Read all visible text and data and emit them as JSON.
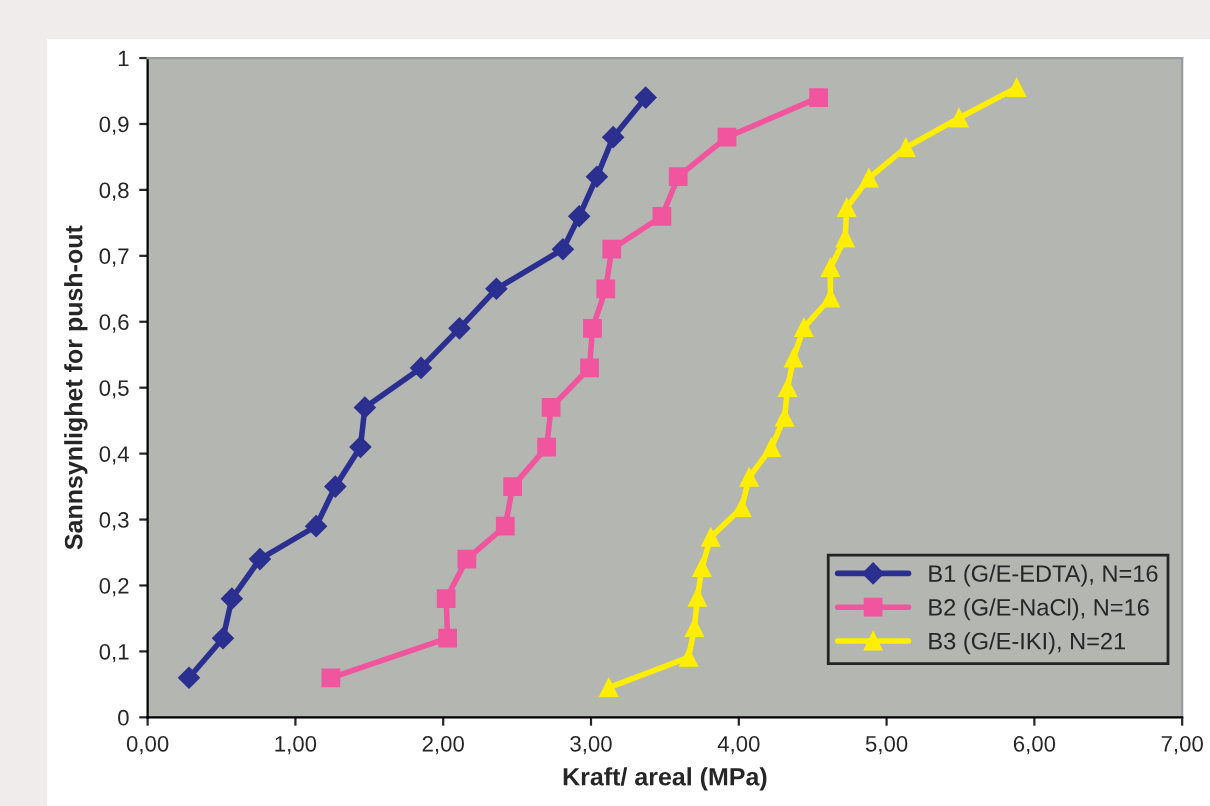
{
  "chart_data": {
    "type": "line",
    "xlabel": "Kraft/ areal (MPa)",
    "ylabel": "Sannsynlighet for push-out",
    "xlim": [
      0,
      7
    ],
    "ylim": [
      0,
      1
    ],
    "xticks": [
      {
        "value": 0,
        "label": "0,00"
      },
      {
        "value": 1,
        "label": "1,00"
      },
      {
        "value": 2,
        "label": "2,00"
      },
      {
        "value": 3,
        "label": "3,00"
      },
      {
        "value": 4,
        "label": "4,00"
      },
      {
        "value": 5,
        "label": "5,00"
      },
      {
        "value": 6,
        "label": "6,00"
      },
      {
        "value": 7,
        "label": "7,00"
      }
    ],
    "yticks": [
      0,
      {
        "value": 0.1,
        "label": "0,1"
      },
      {
        "value": 0.2,
        "label": "0,2"
      },
      {
        "value": 0.3,
        "label": "0,3"
      },
      {
        "value": 0.4,
        "label": "0,4"
      },
      {
        "value": 0.5,
        "label": "0,5"
      },
      {
        "value": 0.6,
        "label": "0,6"
      },
      {
        "value": 0.7,
        "label": "0,7"
      },
      {
        "value": 0.8,
        "label": "0,8"
      },
      {
        "value": 0.9,
        "label": "0,9"
      },
      1
    ],
    "grid": false,
    "legend": "bottom right",
    "line_style": "solid",
    "series": [
      {
        "name": "B1 (G/E-EDTA), N=16",
        "color": "#2b2f8f",
        "marker": "diamond",
        "x": [
          0.28,
          0.51,
          0.57,
          0.76,
          1.14,
          1.27,
          1.44,
          1.47,
          1.85,
          2.11,
          2.36,
          2.81,
          2.92,
          3.04,
          3.15,
          3.37
        ],
        "values": [
          0.06,
          0.12,
          0.18,
          0.24,
          0.29,
          0.35,
          0.41,
          0.47,
          0.53,
          0.59,
          0.65,
          0.71,
          0.76,
          0.82,
          0.88,
          0.94
        ]
      },
      {
        "name": "B2 (G/E-NaCl), N=16",
        "color": "#f0559e",
        "marker": "square",
        "x": [
          1.24,
          2.03,
          2.02,
          2.16,
          2.42,
          2.47,
          2.7,
          2.73,
          2.99,
          3.01,
          3.1,
          3.14,
          3.48,
          3.59,
          3.92,
          4.54
        ],
        "values": [
          0.06,
          0.12,
          0.18,
          0.24,
          0.29,
          0.35,
          0.41,
          0.47,
          0.53,
          0.59,
          0.65,
          0.71,
          0.76,
          0.82,
          0.88,
          0.94
        ]
      },
      {
        "name": "B3 (G/E-IKI), N=21",
        "color": "#ffee00",
        "marker": "triangle",
        "x": [
          3.12,
          3.66,
          3.7,
          3.72,
          3.75,
          3.81,
          4.02,
          4.07,
          4.22,
          4.31,
          4.33,
          4.37,
          4.44,
          4.62,
          4.62,
          4.72,
          4.73,
          4.88,
          5.13,
          5.49,
          5.88
        ],
        "values": [
          0.045,
          0.091,
          0.136,
          0.182,
          0.227,
          0.273,
          0.318,
          0.364,
          0.409,
          0.455,
          0.5,
          0.545,
          0.591,
          0.636,
          0.682,
          0.727,
          0.773,
          0.818,
          0.864,
          0.909,
          0.955
        ]
      }
    ]
  }
}
